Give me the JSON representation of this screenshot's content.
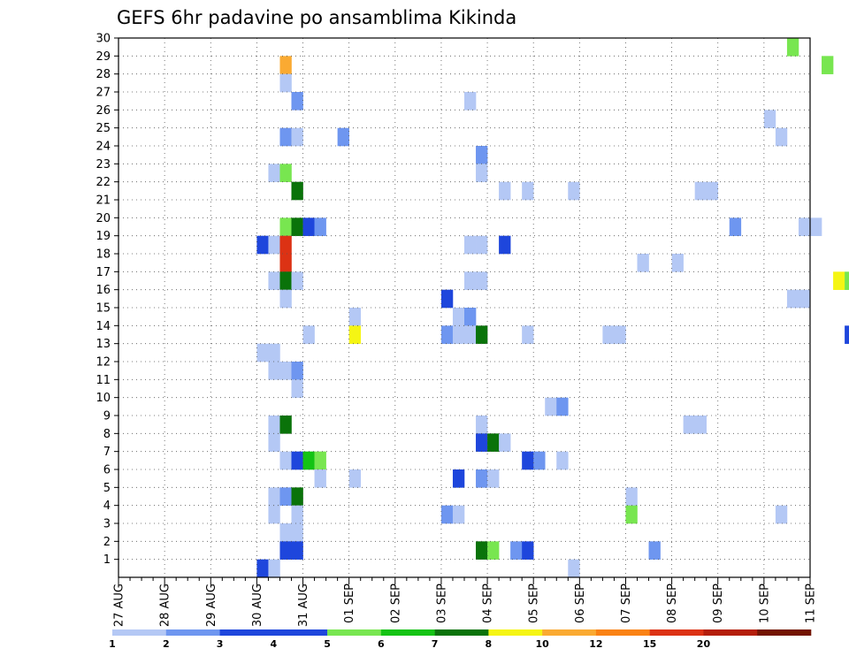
{
  "chart_data": {
    "type": "heatmap",
    "title": "GEFS 6hr padavine po ansamblima Kikinda",
    "xlabel": "",
    "ylabel": "",
    "x_tick_labels": [
      "27 AUG",
      "28 AUG",
      "29 AUG",
      "30 AUG",
      "31 AUG",
      "01 SEP",
      "02 SEP",
      "03 SEP",
      "04 SEP",
      "05 SEP",
      "06 SEP",
      "07 SEP",
      "08 SEP",
      "09 SEP",
      "10 SEP",
      "11 SEP"
    ],
    "x_unit": "6-hour step",
    "y_tick_labels": [
      "1",
      "2",
      "3",
      "4",
      "5",
      "6",
      "7",
      "8",
      "9",
      "10",
      "11",
      "12",
      "13",
      "14",
      "15",
      "16",
      "17",
      "18",
      "19",
      "20",
      "21",
      "22",
      "23",
      "24",
      "25",
      "26",
      "27",
      "28",
      "29",
      "30"
    ],
    "ylim": [
      0,
      30
    ],
    "grid": true,
    "legend": {
      "placement": "bottom",
      "bounds": [
        "1",
        "2",
        "3",
        "4",
        "5",
        "6",
        "7",
        "8",
        "10",
        "12",
        "15",
        "20"
      ],
      "colors": [
        "#b4c8f5",
        "#6e96f0",
        "#1e46dc",
        "#1e46dc",
        "#78e650",
        "#14c314",
        "#0a730a",
        "#f5f514",
        "#faaa32",
        "#fa8214",
        "#dc3214",
        "#b41e0a",
        "#731400"
      ]
    },
    "palette": [
      "#b4c8f5",
      "#6e96f0",
      "#1e46dc",
      "#78e650",
      "#14c314",
      "#0a730a",
      "#f5f514",
      "#faaa32",
      "#fa8214",
      "#dc3214",
      "#b41e0a",
      "#731400"
    ],
    "cells": [
      [
        14.5,
        30,
        3
      ],
      [
        3.5,
        29,
        7
      ],
      [
        15.25,
        29,
        3
      ],
      [
        3.5,
        28,
        0
      ],
      [
        3.75,
        27,
        1
      ],
      [
        7.5,
        27,
        0
      ],
      [
        14,
        26,
        0
      ],
      [
        3.5,
        25,
        1
      ],
      [
        3.75,
        25,
        0
      ],
      [
        4.75,
        25,
        1
      ],
      [
        14.25,
        25,
        0
      ],
      [
        7.75,
        24,
        1
      ],
      [
        3.25,
        23,
        0
      ],
      [
        3.5,
        23,
        3
      ],
      [
        7.75,
        23,
        0
      ],
      [
        3.75,
        22,
        5
      ],
      [
        8.25,
        22,
        0
      ],
      [
        8.75,
        22,
        0
      ],
      [
        9.75,
        22,
        0
      ],
      [
        12.5,
        22,
        0
      ],
      [
        12.75,
        22,
        0
      ],
      [
        3.5,
        20,
        3
      ],
      [
        3.75,
        20,
        5
      ],
      [
        4,
        20,
        2
      ],
      [
        4.25,
        20,
        1
      ],
      [
        13.25,
        20,
        1
      ],
      [
        14.75,
        20,
        0
      ],
      [
        15,
        20,
        0
      ],
      [
        3,
        19,
        2
      ],
      [
        3.25,
        19,
        0
      ],
      [
        3.5,
        19,
        9
      ],
      [
        7.5,
        19,
        0
      ],
      [
        7.75,
        19,
        0
      ],
      [
        8.25,
        19,
        2
      ],
      [
        3.5,
        18,
        9
      ],
      [
        11.25,
        18,
        0
      ],
      [
        12,
        18,
        0
      ],
      [
        3.25,
        17,
        0
      ],
      [
        3.5,
        17,
        5
      ],
      [
        3.75,
        17,
        0
      ],
      [
        7.5,
        17,
        0
      ],
      [
        7.75,
        17,
        0
      ],
      [
        15.5,
        17,
        6
      ],
      [
        15.75,
        17,
        3
      ],
      [
        3.5,
        16,
        0
      ],
      [
        7,
        16,
        2
      ],
      [
        14.5,
        16,
        0
      ],
      [
        14.75,
        16,
        0
      ],
      [
        5,
        15,
        0
      ],
      [
        7.25,
        15,
        0
      ],
      [
        7.5,
        15,
        1
      ],
      [
        4,
        14,
        0
      ],
      [
        5,
        14,
        6
      ],
      [
        7,
        14,
        1
      ],
      [
        7.25,
        14,
        0
      ],
      [
        7.5,
        14,
        0
      ],
      [
        7.75,
        14,
        5
      ],
      [
        8.75,
        14,
        0
      ],
      [
        10.5,
        14,
        0
      ],
      [
        10.75,
        14,
        0
      ],
      [
        15.75,
        14,
        2
      ],
      [
        3,
        13,
        0
      ],
      [
        3.25,
        13,
        0
      ],
      [
        3.25,
        12,
        0
      ],
      [
        3.5,
        12,
        0
      ],
      [
        3.75,
        12,
        1
      ],
      [
        3.75,
        11,
        0
      ],
      [
        9.25,
        10,
        0
      ],
      [
        9.5,
        10,
        1
      ],
      [
        3.25,
        9,
        0
      ],
      [
        3.5,
        9,
        5
      ],
      [
        7.75,
        9,
        0
      ],
      [
        12.25,
        9,
        0
      ],
      [
        12.5,
        9,
        0
      ],
      [
        3.25,
        8,
        0
      ],
      [
        7.75,
        8,
        2
      ],
      [
        8,
        8,
        5
      ],
      [
        8.25,
        8,
        0
      ],
      [
        3.5,
        7,
        0
      ],
      [
        3.75,
        7,
        2
      ],
      [
        4,
        7,
        4
      ],
      [
        4.25,
        7,
        3
      ],
      [
        8.75,
        7,
        2
      ],
      [
        9,
        7,
        1
      ],
      [
        9.5,
        7,
        0
      ],
      [
        4.25,
        6,
        0
      ],
      [
        5,
        6,
        0
      ],
      [
        7.25,
        6,
        2
      ],
      [
        7.75,
        6,
        1
      ],
      [
        8,
        6,
        0
      ],
      [
        3.25,
        5,
        0
      ],
      [
        3.5,
        5,
        1
      ],
      [
        3.75,
        5,
        5
      ],
      [
        11,
        5,
        0
      ],
      [
        3.25,
        4,
        0
      ],
      [
        3.75,
        4,
        0
      ],
      [
        7,
        4,
        1
      ],
      [
        7.25,
        4,
        0
      ],
      [
        11,
        4,
        3
      ],
      [
        14.25,
        4,
        0
      ],
      [
        3.5,
        3,
        0
      ],
      [
        3.75,
        3,
        0
      ],
      [
        3.5,
        2,
        2
      ],
      [
        3.75,
        2,
        2
      ],
      [
        7.75,
        2,
        5
      ],
      [
        8,
        2,
        3
      ],
      [
        8.5,
        2,
        1
      ],
      [
        8.75,
        2,
        2
      ],
      [
        11.5,
        2,
        1
      ],
      [
        3,
        1,
        2
      ],
      [
        3.25,
        1,
        0
      ],
      [
        9.75,
        1,
        0
      ]
    ]
  }
}
